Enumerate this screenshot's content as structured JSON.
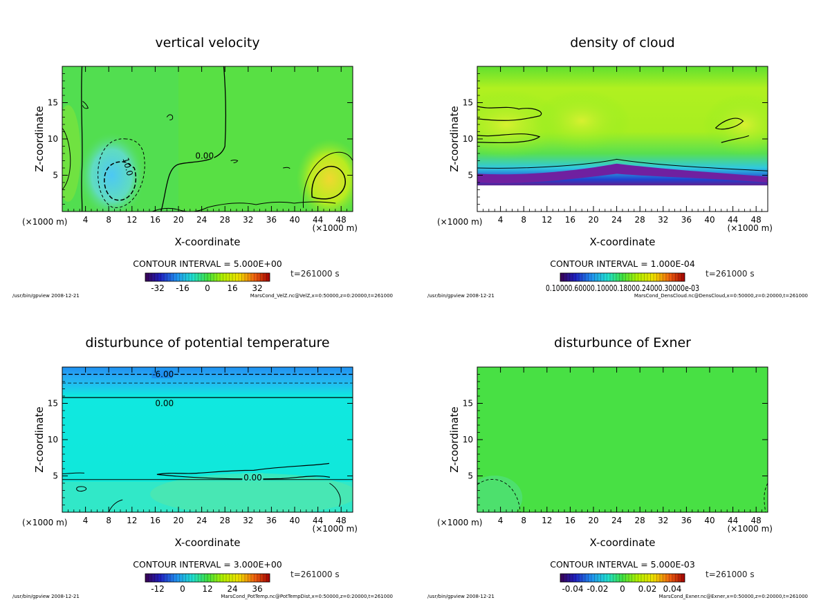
{
  "figure": {
    "panels": [
      {
        "title": "vertical velocity",
        "xlabel": "X-coordinate",
        "ylabel": "Z-coordinate",
        "x_unit": "(×1000 m)",
        "contour_interval": "CONTOUR INTERVAL = 5.000E+00",
        "time": "t=261000 s",
        "footer_left": "/usr/bin/gpview  2008-12-21",
        "footer_right": "MarsCond_VelZ.nc@VelZ,x=0:50000,z=0:20000,t=261000",
        "colorbar_labels": [
          "-32",
          "-16",
          "0",
          "16",
          "32"
        ],
        "contour_labels": [
          "10.0",
          "0.00"
        ]
      },
      {
        "title": "density of cloud",
        "xlabel": "X-coordinate",
        "ylabel": "Z-coordinate",
        "x_unit": "(×1000 m)",
        "contour_interval": "CONTOUR INTERVAL = 1.000E-04",
        "time": "t=261000 s",
        "footer_left": "/usr/bin/gpview  2008-12-21",
        "footer_right": "MarsCond_DensCloud.nc@DensCloud,x=0:50000,z=0:20000,t=261000",
        "colorbar_labels": [
          "0.10000.60000.10000.18000.24000.30000e-03"
        ],
        "contour_labels": []
      },
      {
        "title": "disturbunce of potential temperature",
        "xlabel": "X-coordinate",
        "ylabel": "Z-coordinate",
        "x_unit": "(×1000 m)",
        "contour_interval": "CONTOUR INTERVAL = 3.000E+00",
        "time": "t=261000 s",
        "footer_left": "/usr/bin/gpview  2008-12-21",
        "footer_right": "MarsCond_PotTemp.nc@PotTempDist,x=0:50000,z=0:20000,t=261000",
        "colorbar_labels": [
          "-12",
          "0",
          "12",
          "24",
          "36"
        ],
        "contour_labels": [
          "-6.00",
          "0.00",
          "0.00"
        ]
      },
      {
        "title": "disturbunce of Exner",
        "xlabel": "X-coordinate",
        "ylabel": "Z-coordinate",
        "x_unit": "(×1000 m)",
        "contour_interval": "CONTOUR INTERVAL = 5.000E-03",
        "time": "t=261000 s",
        "footer_left": "/usr/bin/gpview  2008-12-21",
        "footer_right": "MarsCond_Exner.nc@Exner,x=0:50000,z=0:20000,t=261000",
        "colorbar_labels": [
          "-0.04",
          "-0.02",
          "0",
          "0.02",
          "0.04"
        ],
        "contour_labels": []
      }
    ]
  },
  "chart_data": [
    {
      "type": "heatmap",
      "title": "vertical velocity",
      "xlabel": "X-coordinate",
      "ylabel": "Z-coordinate",
      "x_ticks": [
        4,
        8,
        12,
        16,
        20,
        24,
        28,
        32,
        36,
        40,
        44,
        48
      ],
      "y_ticks": [
        5,
        10,
        15
      ],
      "xlim": [
        0,
        50
      ],
      "ylim": [
        0,
        20
      ],
      "contour_interval": 5.0,
      "colorbar_range": [
        -40,
        40
      ],
      "colorbar_ticks": [
        -32,
        -16,
        0,
        16,
        32
      ],
      "time_s": 261000
    },
    {
      "type": "heatmap",
      "title": "density of cloud",
      "xlabel": "X-coordinate",
      "ylabel": "Z-coordinate",
      "x_ticks": [
        4,
        8,
        12,
        16,
        20,
        24,
        28,
        32,
        36,
        40,
        44,
        48
      ],
      "y_ticks": [
        5,
        10,
        15
      ],
      "xlim": [
        0,
        50
      ],
      "ylim": [
        0,
        20
      ],
      "contour_interval": 0.0001,
      "colorbar_range": [
        0,
        0.0003
      ],
      "time_s": 261000
    },
    {
      "type": "heatmap",
      "title": "disturbunce of potential temperature",
      "xlabel": "X-coordinate",
      "ylabel": "Z-coordinate",
      "x_ticks": [
        4,
        8,
        12,
        16,
        20,
        24,
        28,
        32,
        36,
        40,
        44,
        48
      ],
      "y_ticks": [
        5,
        10,
        15
      ],
      "xlim": [
        0,
        50
      ],
      "ylim": [
        0,
        20
      ],
      "contour_interval": 3.0,
      "colorbar_range": [
        -18,
        42
      ],
      "colorbar_ticks": [
        -12,
        0,
        12,
        24,
        36
      ],
      "time_s": 261000
    },
    {
      "type": "heatmap",
      "title": "disturbunce of Exner",
      "xlabel": "X-coordinate",
      "ylabel": "Z-coordinate",
      "x_ticks": [
        4,
        8,
        12,
        16,
        20,
        24,
        28,
        32,
        36,
        40,
        44,
        48
      ],
      "y_ticks": [
        5,
        10,
        15
      ],
      "xlim": [
        0,
        50
      ],
      "ylim": [
        0,
        20
      ],
      "contour_interval": 0.005,
      "colorbar_range": [
        -0.05,
        0.05
      ],
      "colorbar_ticks": [
        -0.04,
        -0.02,
        0,
        0.02,
        0.04
      ],
      "time_s": 261000
    }
  ]
}
